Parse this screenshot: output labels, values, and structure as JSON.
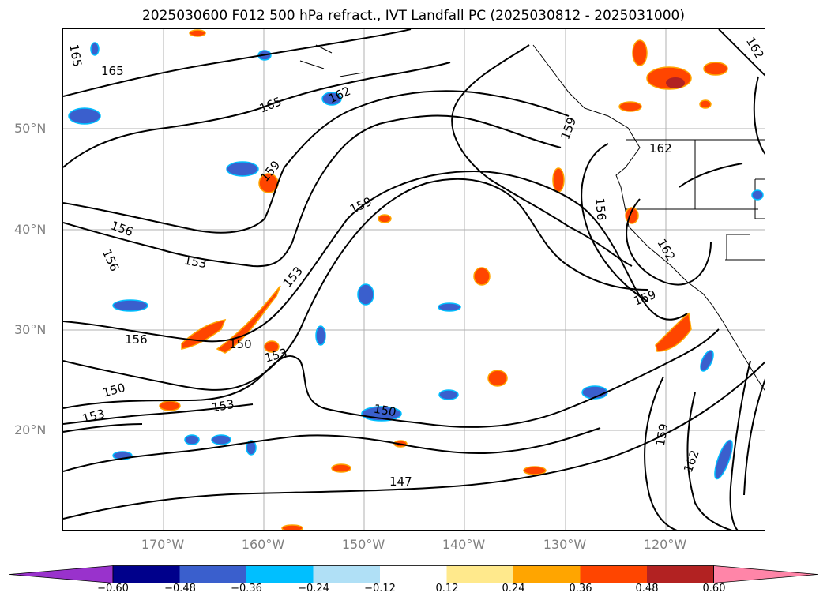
{
  "title": "2025030600 F012 500 hPa refract., IVT Landfall PC (2025030812 - 2025031000)",
  "lat_labels": [
    "50°N",
    "40°N",
    "30°N",
    "20°N"
  ],
  "lon_labels": [
    "170°W",
    "160°W",
    "150°W",
    "140°W",
    "130°W",
    "120°W"
  ],
  "contour_labels": [
    "165",
    "165",
    "165",
    "162",
    "162",
    "162",
    "162",
    "162",
    "159",
    "159",
    "159",
    "159",
    "159",
    "156",
    "156",
    "156",
    "156",
    "153",
    "153",
    "153",
    "153",
    "153",
    "150",
    "150",
    "150",
    "147"
  ],
  "colorbar": {
    "ticks": [
      "−0.60",
      "−0.48",
      "−0.36",
      "−0.24",
      "−0.12",
      "0.12",
      "0.24",
      "0.36",
      "0.48",
      "0.60"
    ],
    "colors": [
      "#9932cc",
      "#00008b",
      "#3a5fcd",
      "#00bfff",
      "#b0e0f6",
      "#ffffff",
      "#ffe98c",
      "#ffa500",
      "#ff4500",
      "#b22222",
      "#ff85a8"
    ]
  }
}
